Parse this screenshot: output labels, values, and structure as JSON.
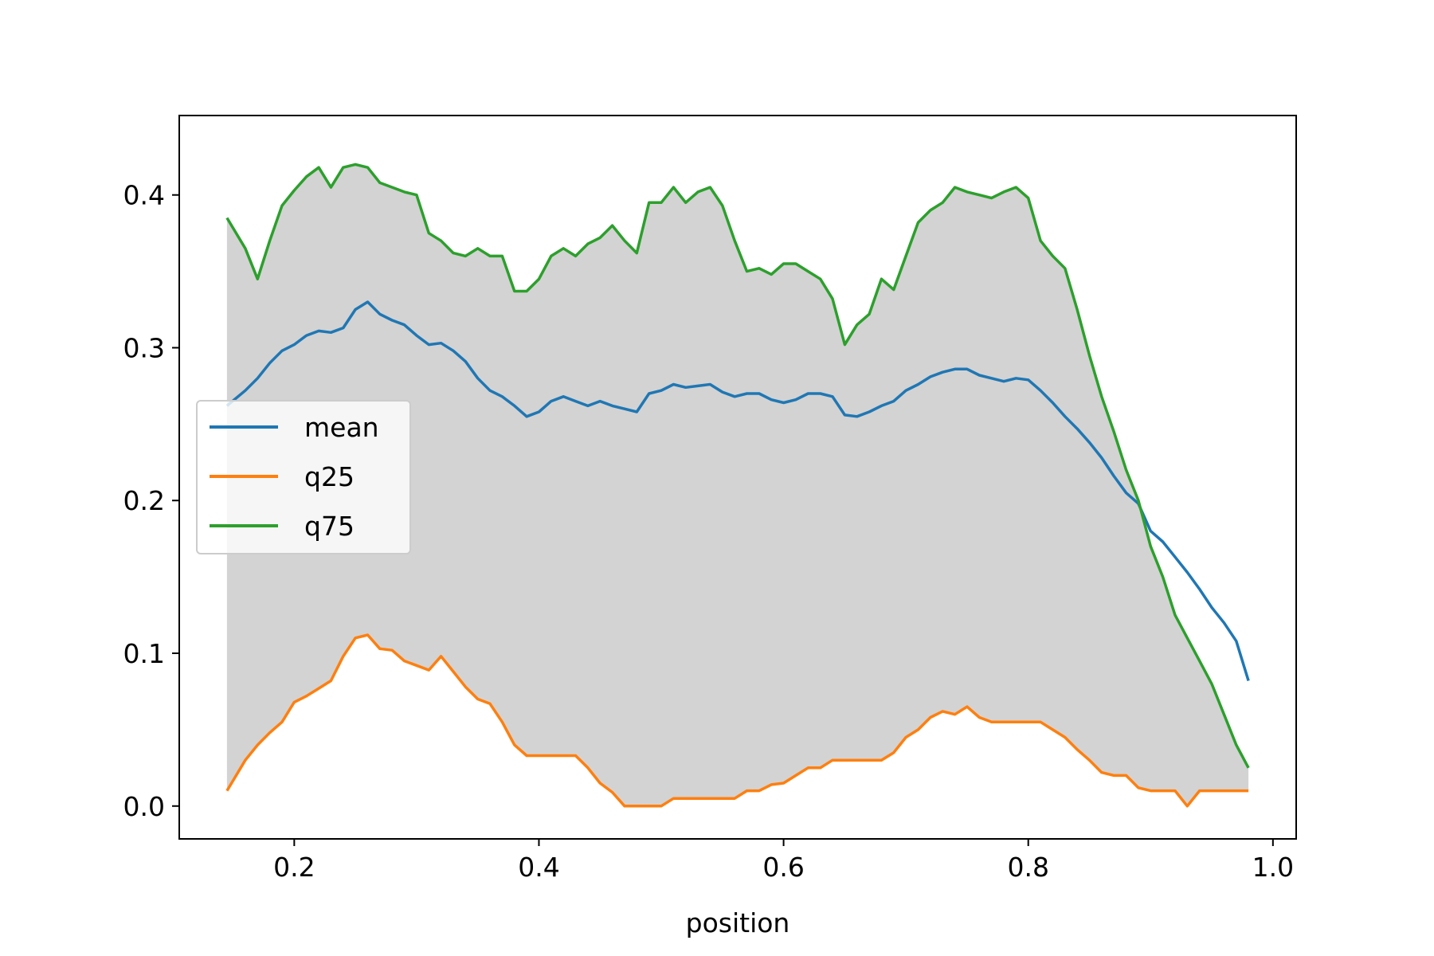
{
  "chart_data": {
    "type": "line",
    "title": "",
    "xlabel": "position",
    "ylabel": "",
    "xlim": [
      0.106,
      1.019
    ],
    "ylim": [
      -0.0215,
      0.452
    ],
    "x_ticks": [
      0.2,
      0.4,
      0.6,
      0.8,
      1.0
    ],
    "x_tick_labels": [
      "0.2",
      "0.4",
      "0.6",
      "0.8",
      "1.0"
    ],
    "y_ticks": [
      0.0,
      0.1,
      0.2,
      0.3,
      0.4
    ],
    "y_tick_labels": [
      "0.0",
      "0.1",
      "0.2",
      "0.3",
      "0.4"
    ],
    "grid": false,
    "legend": {
      "position": "center-left"
    },
    "shaded_band": {
      "between": [
        "q25",
        "q75"
      ],
      "color": "#d3d3d3"
    },
    "x": [
      0.145,
      0.16,
      0.17,
      0.18,
      0.19,
      0.2,
      0.21,
      0.22,
      0.23,
      0.24,
      0.25,
      0.26,
      0.27,
      0.28,
      0.29,
      0.3,
      0.31,
      0.32,
      0.33,
      0.34,
      0.35,
      0.36,
      0.37,
      0.38,
      0.39,
      0.4,
      0.41,
      0.42,
      0.43,
      0.44,
      0.45,
      0.46,
      0.47,
      0.48,
      0.49,
      0.5,
      0.51,
      0.52,
      0.53,
      0.54,
      0.55,
      0.56,
      0.57,
      0.58,
      0.59,
      0.6,
      0.61,
      0.62,
      0.63,
      0.64,
      0.65,
      0.66,
      0.67,
      0.68,
      0.69,
      0.7,
      0.71,
      0.72,
      0.73,
      0.74,
      0.75,
      0.76,
      0.77,
      0.78,
      0.79,
      0.8,
      0.81,
      0.82,
      0.83,
      0.84,
      0.85,
      0.86,
      0.87,
      0.88,
      0.89,
      0.9,
      0.91,
      0.92,
      0.93,
      0.94,
      0.95,
      0.96,
      0.97,
      0.98
    ],
    "series": [
      {
        "name": "mean",
        "color": "#1f77b4",
        "values": [
          0.262,
          0.272,
          0.28,
          0.29,
          0.298,
          0.302,
          0.308,
          0.311,
          0.31,
          0.313,
          0.325,
          0.33,
          0.322,
          0.318,
          0.315,
          0.308,
          0.302,
          0.303,
          0.298,
          0.291,
          0.28,
          0.272,
          0.268,
          0.262,
          0.255,
          0.258,
          0.265,
          0.268,
          0.265,
          0.262,
          0.265,
          0.262,
          0.26,
          0.258,
          0.27,
          0.272,
          0.276,
          0.274,
          0.275,
          0.276,
          0.271,
          0.268,
          0.27,
          0.27,
          0.266,
          0.264,
          0.266,
          0.27,
          0.27,
          0.268,
          0.256,
          0.255,
          0.258,
          0.262,
          0.265,
          0.272,
          0.276,
          0.281,
          0.284,
          0.286,
          0.286,
          0.282,
          0.28,
          0.278,
          0.28,
          0.279,
          0.272,
          0.264,
          0.255,
          0.247,
          0.238,
          0.228,
          0.216,
          0.205,
          0.198,
          0.18,
          0.173,
          0.163,
          0.153,
          0.142,
          0.13,
          0.12,
          0.108,
          0.082
        ]
      },
      {
        "name": "q25",
        "color": "#ff7f0e",
        "values": [
          0.01,
          0.03,
          0.04,
          0.048,
          0.055,
          0.068,
          0.072,
          0.077,
          0.082,
          0.098,
          0.11,
          0.112,
          0.103,
          0.102,
          0.095,
          0.092,
          0.089,
          0.098,
          0.088,
          0.078,
          0.07,
          0.067,
          0.055,
          0.04,
          0.033,
          0.033,
          0.033,
          0.033,
          0.033,
          0.025,
          0.015,
          0.009,
          0.0,
          0.0,
          0.0,
          0.0,
          0.005,
          0.005,
          0.005,
          0.005,
          0.005,
          0.005,
          0.01,
          0.01,
          0.014,
          0.015,
          0.02,
          0.025,
          0.025,
          0.03,
          0.03,
          0.03,
          0.03,
          0.03,
          0.035,
          0.045,
          0.05,
          0.058,
          0.062,
          0.06,
          0.065,
          0.058,
          0.055,
          0.055,
          0.055,
          0.055,
          0.055,
          0.05,
          0.045,
          0.037,
          0.03,
          0.022,
          0.02,
          0.02,
          0.012,
          0.01,
          0.01,
          0.01,
          0.0,
          0.01,
          0.01,
          0.01,
          0.01,
          0.01
        ]
      },
      {
        "name": "q75",
        "color": "#2ca02c",
        "values": [
          0.385,
          0.365,
          0.345,
          0.37,
          0.393,
          0.403,
          0.412,
          0.418,
          0.405,
          0.418,
          0.42,
          0.418,
          0.408,
          0.405,
          0.402,
          0.4,
          0.375,
          0.37,
          0.362,
          0.36,
          0.365,
          0.36,
          0.36,
          0.337,
          0.337,
          0.345,
          0.36,
          0.365,
          0.36,
          0.368,
          0.372,
          0.38,
          0.37,
          0.362,
          0.395,
          0.395,
          0.405,
          0.395,
          0.402,
          0.405,
          0.393,
          0.37,
          0.35,
          0.352,
          0.348,
          0.355,
          0.355,
          0.35,
          0.345,
          0.332,
          0.302,
          0.315,
          0.322,
          0.345,
          0.338,
          0.36,
          0.382,
          0.39,
          0.395,
          0.405,
          0.402,
          0.4,
          0.398,
          0.402,
          0.405,
          0.398,
          0.37,
          0.36,
          0.352,
          0.325,
          0.295,
          0.268,
          0.245,
          0.22,
          0.2,
          0.17,
          0.15,
          0.125,
          0.11,
          0.095,
          0.08,
          0.06,
          0.04,
          0.025
        ]
      }
    ]
  }
}
